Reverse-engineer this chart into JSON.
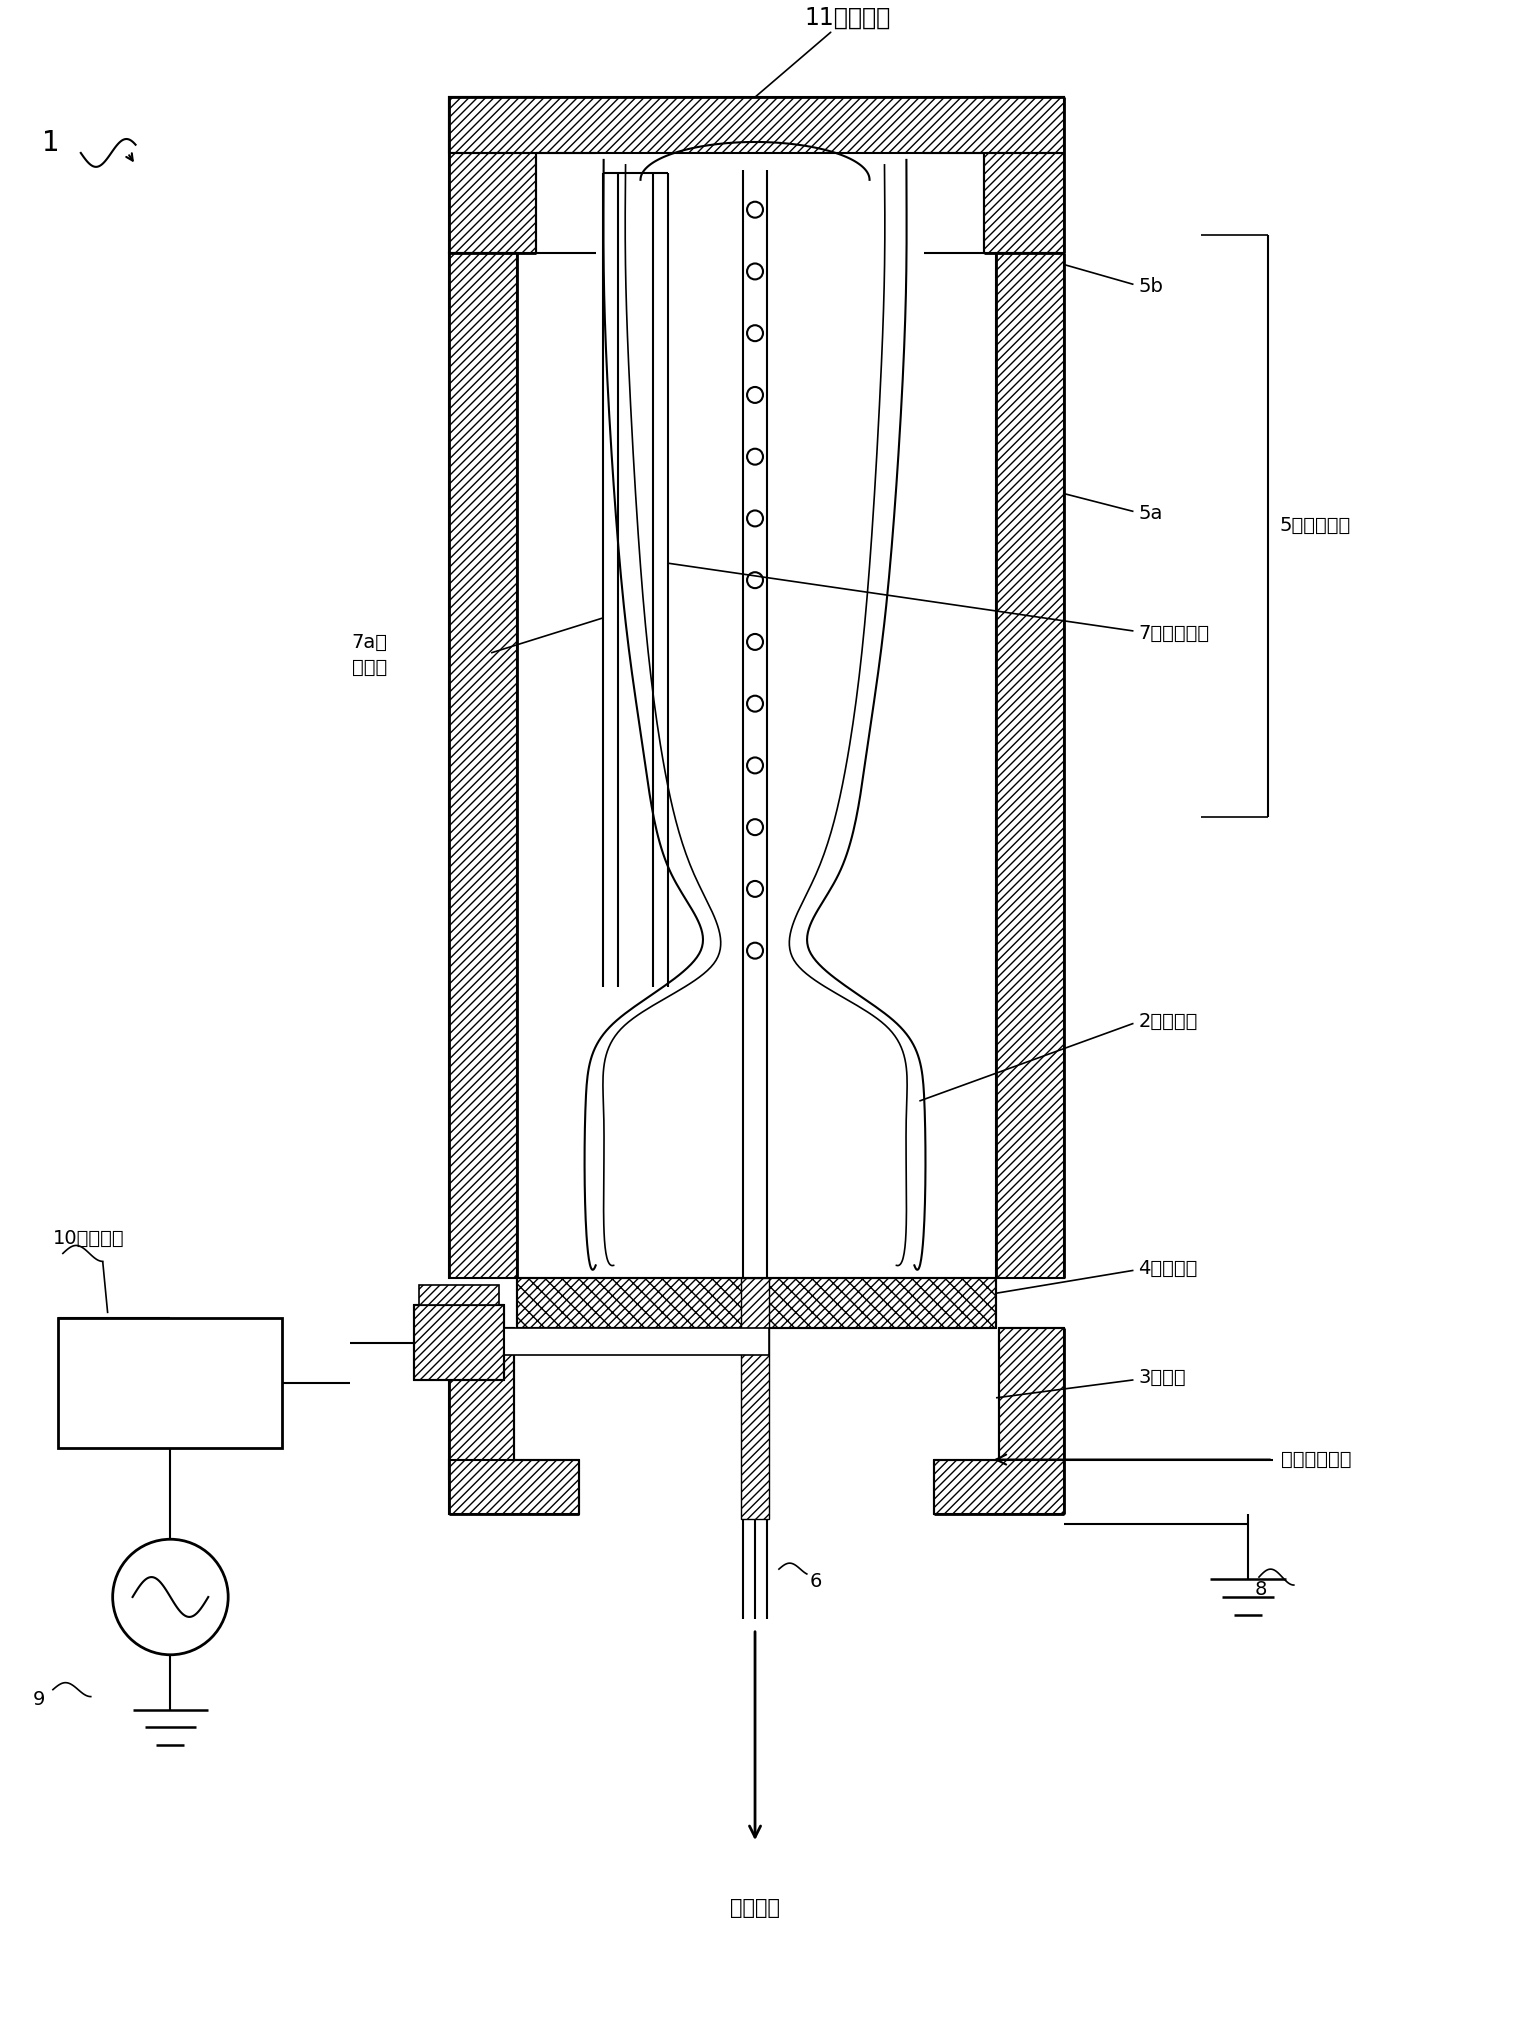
{
  "bg_color": "#ffffff",
  "labels": {
    "L11": "11：成膜室",
    "L1": "1",
    "L5b": "5b",
    "L5a": "5a",
    "L5": "5：外部电极",
    "L7a_num": "7a；",
    "L7a_txt": "噴出孔",
    "L7": "7：内部电极",
    "L2": "2：树脂瓶",
    "L4": "4：绸缘板",
    "L3": "3：基台",
    "L_gas": "（原料气体）",
    "L8": "8",
    "L10": "10：匹配器",
    "L9": "9",
    "L6": "6",
    "L_exhaust": "（排气）"
  }
}
